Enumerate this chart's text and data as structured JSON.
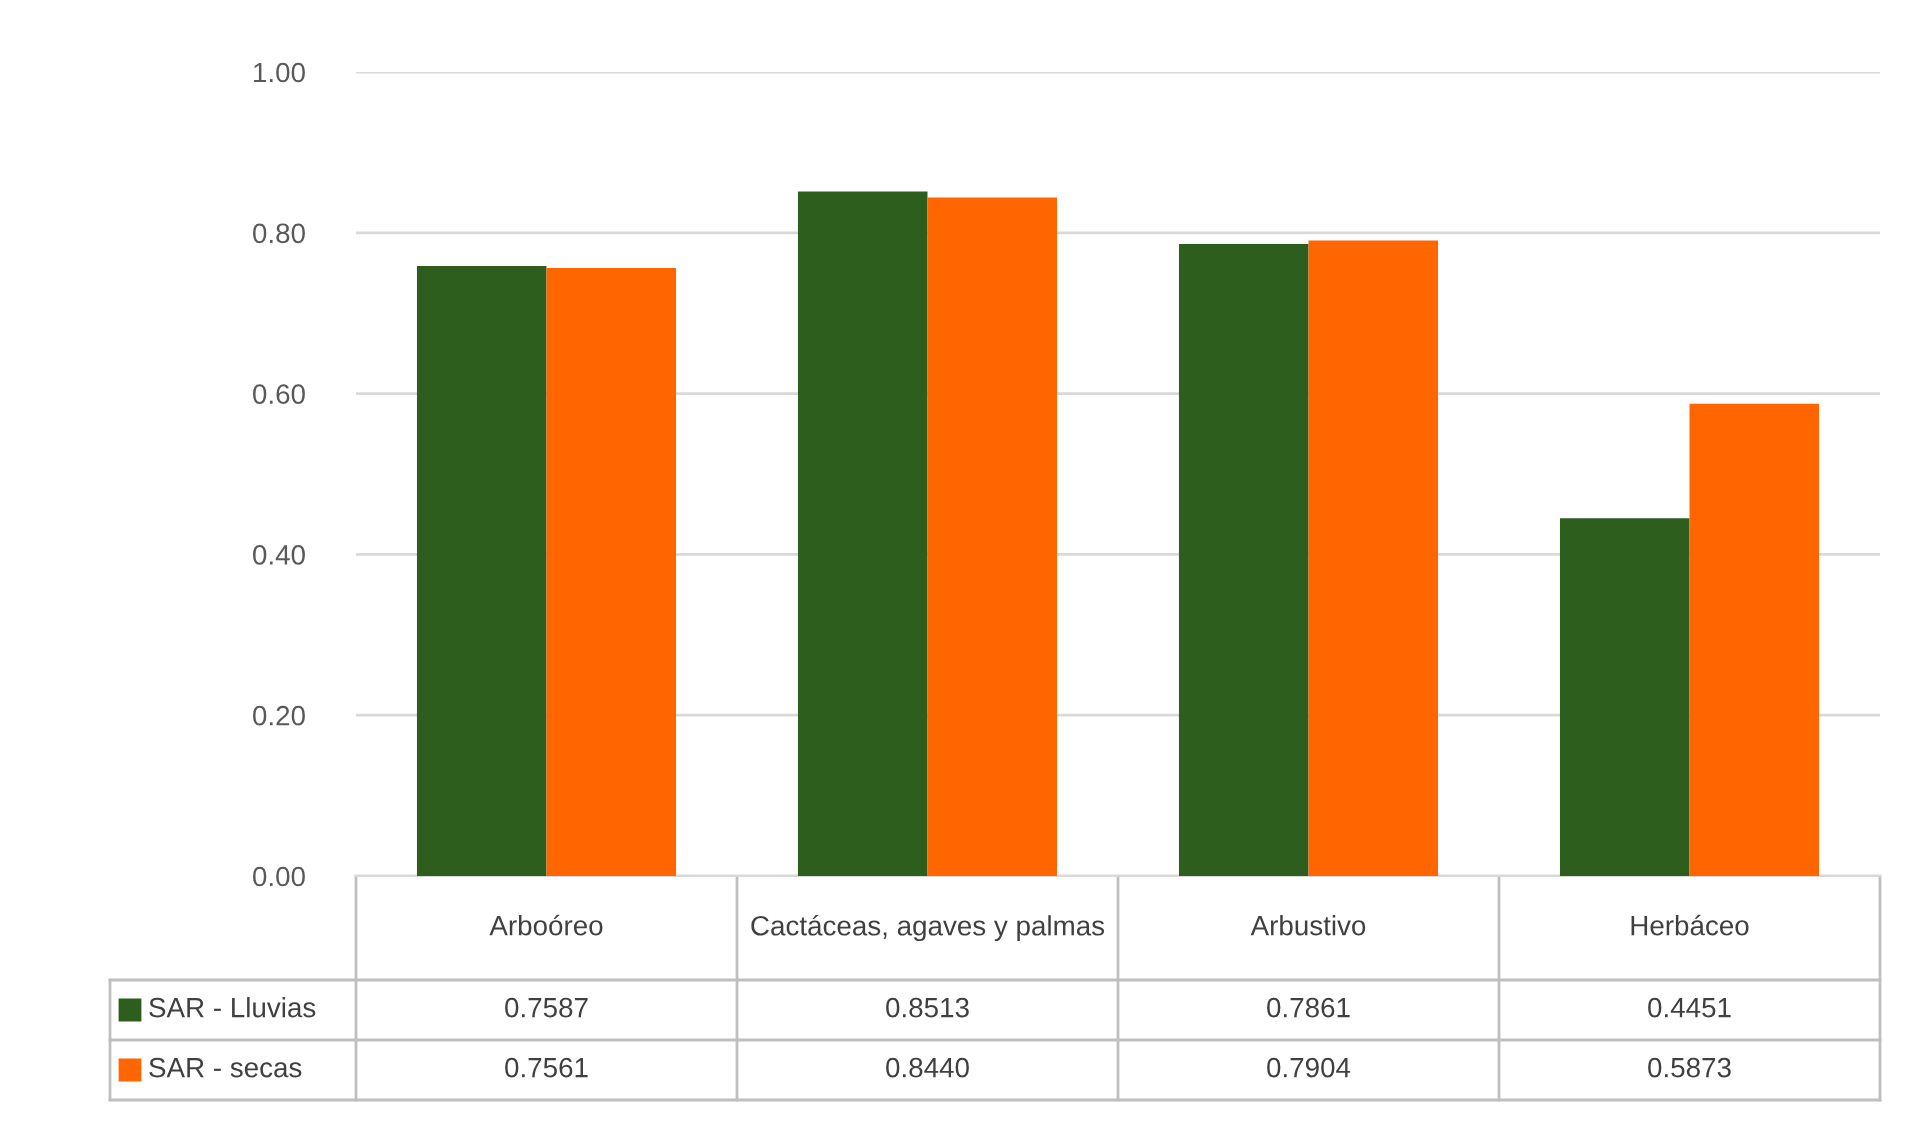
{
  "chart_data": {
    "type": "bar",
    "categories": [
      "Arboóreo",
      "Cactáceas, agaves y palmas",
      "Arbustivo",
      "Herbáceo"
    ],
    "series": [
      {
        "name": "SAR - Lluvias",
        "color": "#2e5e1e",
        "values": [
          0.7587,
          0.8513,
          0.7861,
          0.4451
        ],
        "value_labels": [
          "0.7587",
          "0.8513",
          "0.7861",
          "0.4451"
        ]
      },
      {
        "name": "SAR - secas",
        "color": "#ff6600",
        "values": [
          0.7561,
          0.844,
          0.7904,
          0.5873
        ],
        "value_labels": [
          "0.7561",
          "0.8440",
          "0.7904",
          "0.5873"
        ]
      }
    ],
    "ylim": [
      0,
      1
    ],
    "yticks": [
      {
        "value": 0,
        "label": "0.00"
      },
      {
        "value": 0.2,
        "label": "0.20"
      },
      {
        "value": 0.4,
        "label": "0.40"
      },
      {
        "value": 0.6,
        "label": "0.60"
      },
      {
        "value": 0.8,
        "label": "0.80"
      },
      {
        "value": 1,
        "label": "1.00"
      }
    ],
    "grid": "y",
    "legend": "bottom"
  }
}
